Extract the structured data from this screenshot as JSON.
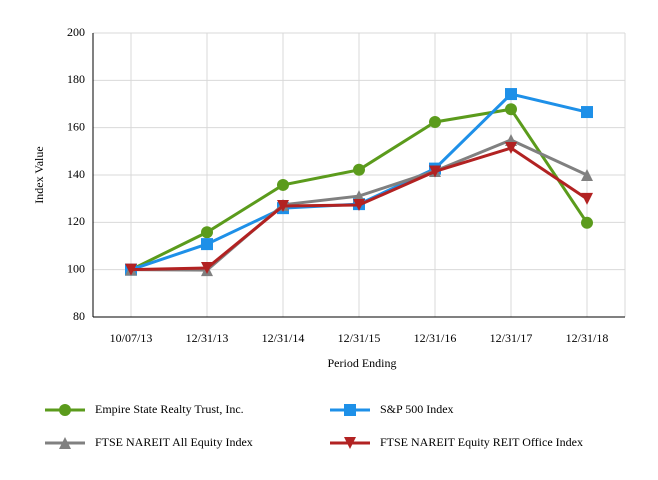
{
  "chart_data": {
    "type": "line",
    "x_label": "Period Ending",
    "y_label": "Index Value",
    "categories": [
      "10/07/13",
      "12/31/13",
      "12/31/14",
      "12/31/15",
      "12/31/16",
      "12/31/17",
      "12/31/18"
    ],
    "series": [
      {
        "name": "Empire State Realty Trust, Inc.",
        "color": "#5b9b1c",
        "marker": "circle",
        "values": [
          100,
          115.8,
          135.8,
          142.2,
          162.4,
          167.8,
          119.8
        ]
      },
      {
        "name": "S&P 500 Index",
        "color": "#1e90e8",
        "marker": "square",
        "values": [
          100,
          110.8,
          126,
          127.7,
          142.7,
          174.2,
          166.6
        ]
      },
      {
        "name": "FTSE NAREIT All Equity Index",
        "color": "#808080",
        "marker": "triangle-up",
        "values": [
          100,
          99.8,
          127.4,
          131.1,
          141.7,
          154.8,
          140
        ]
      },
      {
        "name": "FTSE NAREIT Equity REIT Office Index",
        "color": "#b22222",
        "marker": "triangle-down",
        "values": [
          100,
          100.7,
          126.9,
          127.3,
          141.5,
          151.4,
          129.9
        ]
      }
    ],
    "ylim": [
      80,
      200
    ],
    "yticks": [
      80,
      100,
      120,
      140,
      160,
      180,
      200
    ],
    "grid": true
  }
}
